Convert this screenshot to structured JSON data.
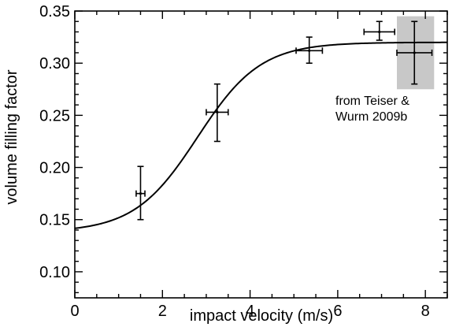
{
  "chart_data": {
    "type": "scatter",
    "xlabel": "impact velocity (m/s)",
    "ylabel": "volume filling factor",
    "xlim": [
      0,
      8.5
    ],
    "ylim": [
      0.075,
      0.35
    ],
    "x_ticks": [
      0,
      2,
      4,
      6,
      8
    ],
    "x_tick_labels": [
      "0",
      "2",
      "4",
      "6",
      "8"
    ],
    "y_ticks": [
      0.1,
      0.15,
      0.2,
      0.25,
      0.3,
      0.35
    ],
    "y_tick_labels": [
      "0.10",
      "0.15",
      "0.20",
      "0.25",
      "0.30",
      "0.35"
    ],
    "grid": false,
    "points": [
      {
        "x": 1.5,
        "y": 0.175,
        "xerr": 0.1,
        "yerr_low": 0.025,
        "yerr_high": 0.026
      },
      {
        "x": 3.25,
        "y": 0.253,
        "xerr": 0.25,
        "yerr_low": 0.028,
        "yerr_high": 0.027
      },
      {
        "x": 5.35,
        "y": 0.312,
        "xerr": 0.3,
        "yerr_low": 0.012,
        "yerr_high": 0.013
      },
      {
        "x": 6.95,
        "y": 0.33,
        "xerr": 0.35,
        "yerr_low": 0.008,
        "yerr_high": 0.01
      },
      {
        "x": 7.75,
        "y": 0.31,
        "xerr": 0.4,
        "yerr_low": 0.03,
        "yerr_high": 0.03
      }
    ],
    "fit_curve": {
      "lower": 0.138,
      "upper": 0.32,
      "midpoint": 2.8,
      "scale": 0.72
    },
    "highlight_box": {
      "x": [
        7.35,
        8.2
      ],
      "y": [
        0.275,
        0.345
      ],
      "color": "#c8c8c8"
    },
    "annotation": {
      "lines": [
        "from Teiser &",
        "Wurm 2009b"
      ]
    }
  }
}
